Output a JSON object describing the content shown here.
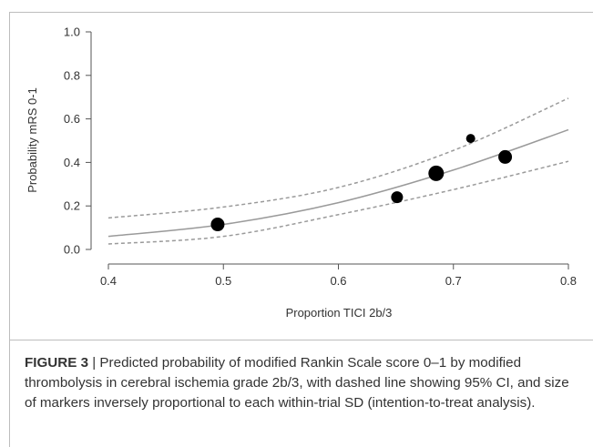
{
  "chart_data": {
    "type": "scatter",
    "xlabel": "Proportion TICI 2b/3",
    "ylabel": "Probability mRS 0-1",
    "xlim": [
      0.4,
      0.8
    ],
    "ylim": [
      0.0,
      1.0
    ],
    "x_ticks": [
      "0.4",
      "0.5",
      "0.6",
      "0.7",
      "0.8"
    ],
    "y_ticks": [
      "0.0",
      "0.2",
      "0.4",
      "0.6",
      "0.8",
      "1.0"
    ],
    "grid": false,
    "points": [
      {
        "x": 0.495,
        "y": 0.115,
        "size": "large"
      },
      {
        "x": 0.651,
        "y": 0.24,
        "size": "medium"
      },
      {
        "x": 0.685,
        "y": 0.35,
        "size": "largest"
      },
      {
        "x": 0.715,
        "y": 0.51,
        "size": "small"
      },
      {
        "x": 0.745,
        "y": 0.425,
        "size": "large"
      }
    ],
    "fit_line": {
      "x": [
        0.4,
        0.5,
        0.6,
        0.7,
        0.8
      ],
      "y": [
        0.06,
        0.115,
        0.215,
        0.365,
        0.55
      ]
    },
    "ci_upper": {
      "x": [
        0.4,
        0.5,
        0.6,
        0.7,
        0.8
      ],
      "y": [
        0.145,
        0.195,
        0.285,
        0.455,
        0.695
      ]
    },
    "ci_lower": {
      "x": [
        0.4,
        0.5,
        0.6,
        0.7,
        0.8
      ],
      "y": [
        0.025,
        0.06,
        0.16,
        0.275,
        0.405
      ]
    }
  },
  "caption": {
    "figure_label": "FIGURE 3",
    "text": " | Predicted probability of modified Rankin Scale score 0–1 by modified thrombolysis in cerebral ischemia grade 2b/3, with dashed line showing 95% CI, and size of markers inversely proportional to each within-trial SD (intention-to-treat analysis)."
  }
}
